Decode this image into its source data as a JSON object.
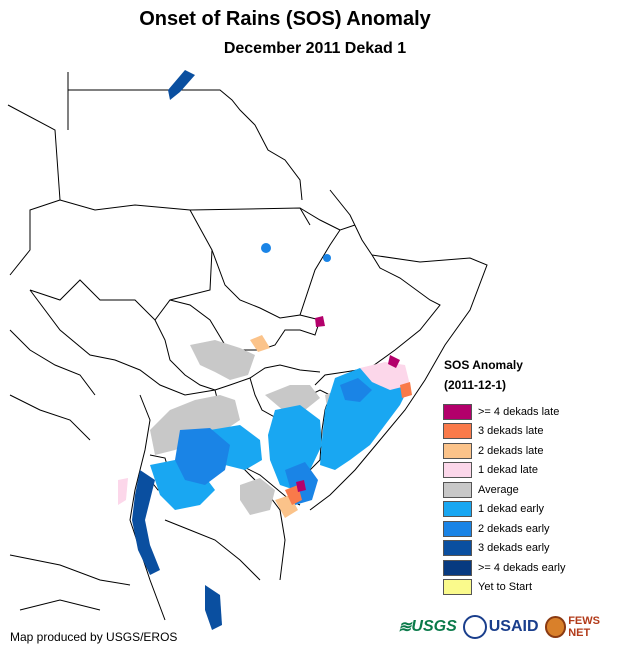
{
  "title": "Onset of Rains (SOS) Anomaly",
  "subtitle": "December 2011 Dekad 1",
  "legend": {
    "title": "SOS Anomaly",
    "date": "(2011-12-1)",
    "items": [
      {
        "label": ">= 4 dekads late",
        "color": "#b3006b"
      },
      {
        "label": "3 dekads late",
        "color": "#f97a4a"
      },
      {
        "label": "2 dekads late",
        "color": "#fbc38a"
      },
      {
        "label": "1 dekad late",
        "color": "#fcd7ea"
      },
      {
        "label": "Average",
        "color": "#c8c8c8"
      },
      {
        "label": "1 dekad early",
        "color": "#19a7f2"
      },
      {
        "label": "2 dekads early",
        "color": "#1a84e6"
      },
      {
        "label": "3 dekads early",
        "color": "#0a4fa0"
      },
      {
        "label": ">= 4 dekads early",
        "color": "#073a80"
      },
      {
        "label": "Yet to Start",
        "color": "#fafa8c"
      }
    ]
  },
  "credit": "Map produced by USGS/EROS",
  "logos": {
    "usgs": "USGS",
    "usaid": "USAID",
    "fews": "FEWS NET"
  }
}
